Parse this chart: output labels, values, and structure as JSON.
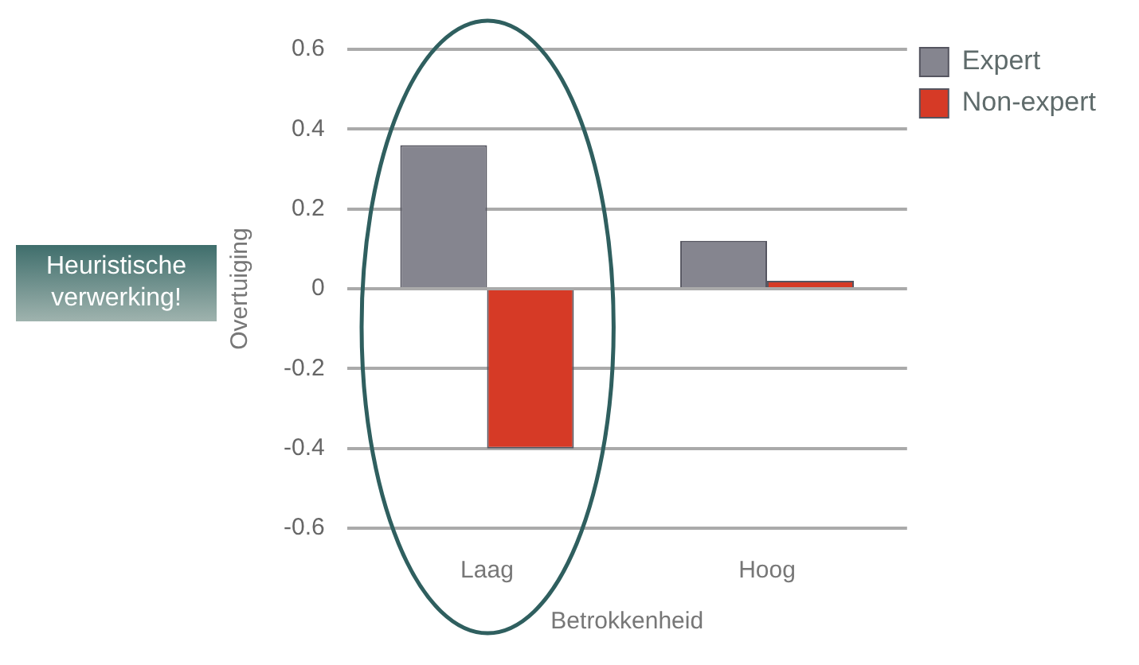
{
  "chart_data": {
    "type": "bar",
    "categories": [
      "Laag",
      "Hoog"
    ],
    "xlabel": "Betrokkenheid",
    "ylabel": "Overtuiging",
    "series": [
      {
        "name": "Expert",
        "color": "#85858f",
        "values": [
          0.36,
          0.12
        ]
      },
      {
        "name": "Non-expert",
        "color": "#d63a26",
        "values": [
          -0.4,
          0.02
        ]
      }
    ],
    "ylim": [
      -0.6,
      0.6
    ],
    "yticks": [
      -0.6,
      -0.4,
      -0.2,
      0,
      0.2,
      0.4,
      0.6
    ],
    "grid": "y",
    "legend": "top right",
    "annotations": [
      "Heuristische verwerking!"
    ]
  }
}
